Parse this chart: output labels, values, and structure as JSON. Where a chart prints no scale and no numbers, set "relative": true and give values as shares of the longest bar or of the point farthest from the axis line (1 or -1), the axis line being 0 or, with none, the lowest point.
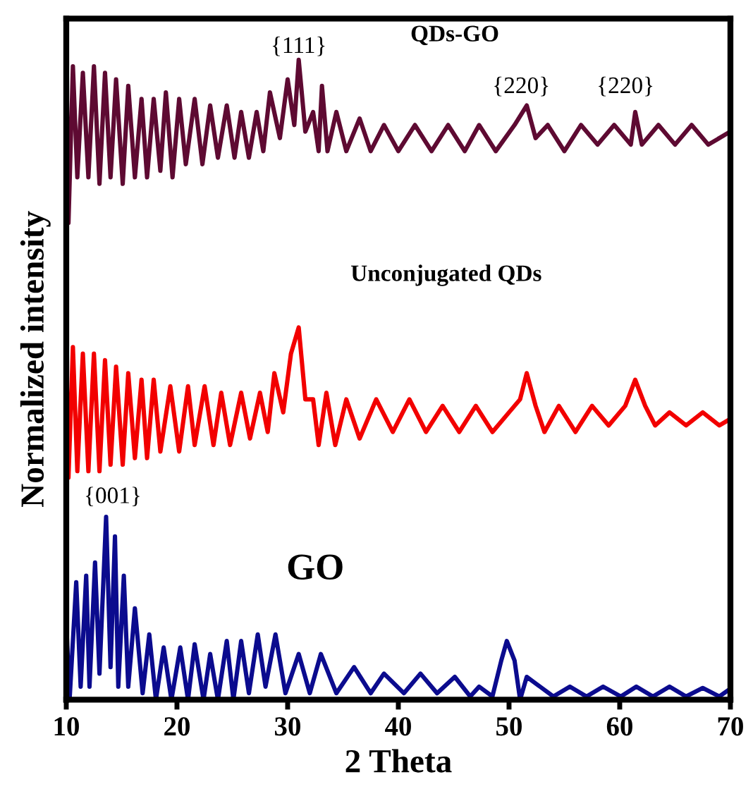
{
  "chart_data": {
    "type": "line",
    "relative": true,
    "xlabel": "2 Theta",
    "ylabel": "Normalized intensity",
    "xlim": [
      10,
      70
    ],
    "xticks": [
      10,
      20,
      30,
      40,
      50,
      60,
      70
    ],
    "grid": false,
    "tick_labels": "x",
    "marker": "none",
    "line_style": "solid",
    "series": [
      {
        "name": "QDs-GO",
        "color": "#5e0a32",
        "x": [
          10.0,
          10.2,
          10.6,
          11.0,
          11.5,
          12.0,
          12.5,
          13.0,
          13.5,
          14.0,
          14.5,
          15.1,
          15.6,
          16.2,
          16.8,
          17.3,
          17.9,
          18.5,
          19.0,
          19.6,
          20.2,
          20.8,
          21.6,
          22.3,
          23.0,
          23.7,
          24.5,
          25.2,
          25.8,
          26.5,
          27.2,
          27.8,
          28.4,
          29.3,
          30.0,
          30.6,
          31.0,
          31.6,
          32.3,
          32.8,
          33.1,
          33.6,
          34.4,
          35.3,
          36.5,
          37.5,
          38.7,
          40,
          41.5,
          43.0,
          44.5,
          46,
          47.3,
          48.8,
          50.5,
          51.6,
          52.4,
          53.5,
          55,
          56.5,
          58,
          59.5,
          61.0,
          61.4,
          62,
          63.5,
          65,
          66.5,
          68,
          70
        ],
        "values": [
          1.0,
          0.73,
          0.97,
          0.8,
          0.96,
          0.8,
          0.97,
          0.79,
          0.96,
          0.8,
          0.95,
          0.79,
          0.94,
          0.8,
          0.92,
          0.8,
          0.92,
          0.81,
          0.93,
          0.8,
          0.92,
          0.82,
          0.92,
          0.82,
          0.91,
          0.83,
          0.91,
          0.83,
          0.9,
          0.83,
          0.9,
          0.84,
          0.93,
          0.86,
          0.95,
          0.88,
          0.98,
          0.87,
          0.9,
          0.84,
          0.94,
          0.84,
          0.9,
          0.84,
          0.89,
          0.84,
          0.88,
          0.84,
          0.88,
          0.84,
          0.88,
          0.84,
          0.88,
          0.84,
          0.88,
          0.91,
          0.86,
          0.88,
          0.84,
          0.88,
          0.85,
          0.88,
          0.85,
          0.9,
          0.85,
          0.88,
          0.85,
          0.88,
          0.85,
          0.87
        ]
      },
      {
        "name": "Unconjugated QDs",
        "color": "#f20000",
        "x": [
          10.0,
          10.2,
          10.6,
          11.0,
          11.5,
          12.0,
          12.5,
          13.0,
          13.5,
          14.0,
          14.5,
          15.1,
          15.6,
          16.2,
          16.8,
          17.3,
          17.9,
          18.5,
          19.4,
          20.2,
          21.0,
          21.6,
          22.5,
          23.3,
          24.0,
          24.8,
          25.8,
          26.6,
          27.5,
          28.2,
          28.8,
          29.6,
          30.3,
          31.0,
          31.6,
          32.3,
          32.8,
          33.5,
          34.3,
          35.3,
          36.5,
          38,
          39.5,
          41,
          42.5,
          44,
          45.5,
          47,
          48.5,
          50,
          51.0,
          51.6,
          52.4,
          53.2,
          54.5,
          56,
          57.5,
          59,
          60.5,
          61.4,
          62.3,
          63.2,
          64.5,
          66,
          67.5,
          69,
          70
        ],
        "values": [
          0.54,
          0.34,
          0.54,
          0.35,
          0.53,
          0.35,
          0.53,
          0.35,
          0.52,
          0.36,
          0.51,
          0.36,
          0.5,
          0.37,
          0.49,
          0.37,
          0.49,
          0.38,
          0.48,
          0.38,
          0.48,
          0.39,
          0.48,
          0.39,
          0.47,
          0.39,
          0.47,
          0.4,
          0.47,
          0.41,
          0.5,
          0.44,
          0.53,
          0.57,
          0.46,
          0.46,
          0.39,
          0.47,
          0.39,
          0.46,
          0.4,
          0.46,
          0.41,
          0.46,
          0.41,
          0.45,
          0.41,
          0.45,
          0.41,
          0.44,
          0.46,
          0.5,
          0.45,
          0.41,
          0.45,
          0.41,
          0.45,
          0.42,
          0.45,
          0.49,
          0.45,
          0.42,
          0.44,
          0.42,
          0.44,
          0.42,
          0.43
        ]
      },
      {
        "name": "GO",
        "color": "#0b0b8e",
        "x": [
          10.0,
          10.3,
          10.9,
          11.3,
          11.8,
          12.1,
          12.6,
          13.0,
          13.6,
          14.0,
          14.4,
          14.7,
          15.2,
          15.6,
          16.2,
          16.9,
          17.5,
          18.1,
          18.8,
          19.5,
          20.3,
          21.0,
          21.6,
          22.4,
          23.0,
          23.7,
          24.5,
          25.1,
          25.8,
          26.5,
          27.3,
          28.0,
          28.9,
          29.8,
          31.0,
          32,
          33,
          34.4,
          36,
          37.5,
          38.7,
          40.5,
          42,
          43.5,
          45.1,
          46.5,
          47.3,
          48.5,
          49.3,
          49.8,
          50.5,
          51.0,
          51.6,
          52.8,
          54,
          55.5,
          57,
          58.5,
          60.1,
          61.5,
          63,
          64.5,
          66,
          67.5,
          69,
          70
        ],
        "values": [
          0.12,
          0.0,
          0.18,
          0.02,
          0.19,
          0.02,
          0.21,
          0.04,
          0.28,
          0.05,
          0.25,
          0.02,
          0.19,
          0.02,
          0.14,
          0.01,
          0.1,
          0.0,
          0.08,
          0.0,
          0.08,
          0.0,
          0.085,
          0.0,
          0.07,
          0.0,
          0.09,
          0.0,
          0.09,
          0.01,
          0.1,
          0.02,
          0.1,
          0.01,
          0.07,
          0.01,
          0.07,
          0.01,
          0.05,
          0.01,
          0.04,
          0.01,
          0.04,
          0.01,
          0.035,
          0.005,
          0.02,
          0.005,
          0.06,
          0.09,
          0.06,
          0.0,
          0.035,
          0.02,
          0.005,
          0.02,
          0.005,
          0.02,
          0.005,
          0.02,
          0.005,
          0.02,
          0.005,
          0.018,
          0.005,
          0.017
        ]
      }
    ],
    "annotations": [
      "{111}",
      "{220}",
      "{220}",
      "{001}"
    ]
  }
}
